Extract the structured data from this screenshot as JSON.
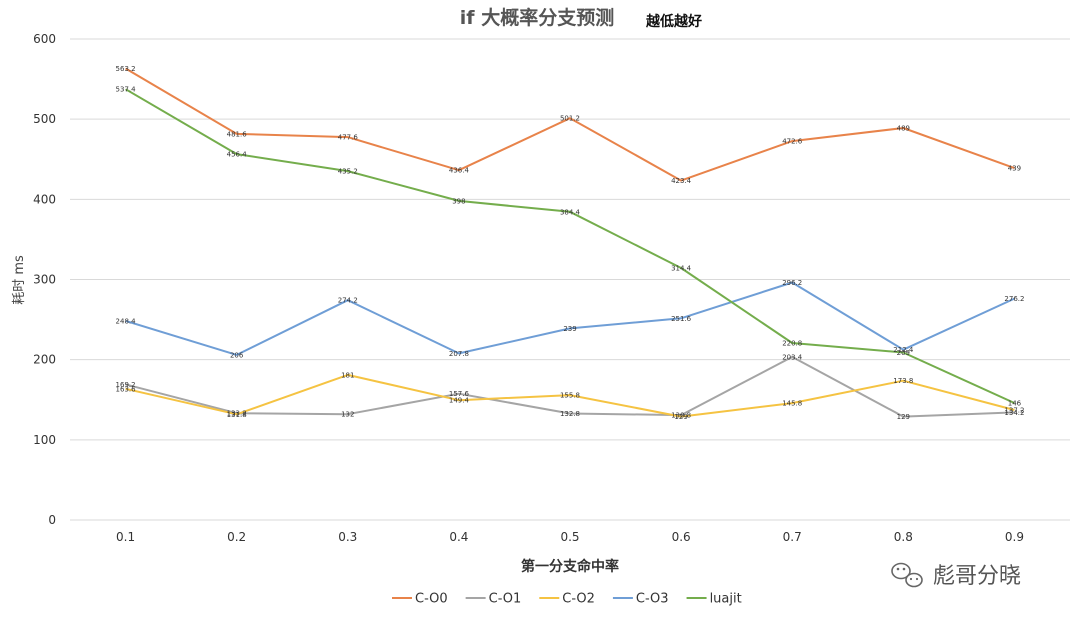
{
  "chart_data": {
    "type": "line",
    "title": "if 大概率分支预测",
    "subtitle": "越低越好",
    "xlabel": "第一分支命中率",
    "ylabel": "耗时 ms",
    "categories": [
      "0.1",
      "0.2",
      "0.3",
      "0.4",
      "0.5",
      "0.6",
      "0.7",
      "0.8",
      "0.9"
    ],
    "ylim": [
      0,
      600
    ],
    "yticks": [
      0,
      100,
      200,
      300,
      400,
      500,
      600
    ],
    "grid": true,
    "legend_position": "bottom",
    "series": [
      {
        "name": "C-O0",
        "color": "#e8834a",
        "values": [
          563.2,
          481.6,
          477.6,
          436.4,
          501.2,
          423.4,
          472.6,
          489,
          439
        ]
      },
      {
        "name": "C-O1",
        "color": "#a5a5a5",
        "values": [
          169.2,
          133.2,
          132,
          157.6,
          132.8,
          130.8,
          203.4,
          129,
          134.2
        ]
      },
      {
        "name": "C-O2",
        "color": "#f5c342",
        "values": [
          163.6,
          131.8,
          181,
          149.4,
          155.8,
          129,
          145.8,
          173.8,
          137.2
        ]
      },
      {
        "name": "C-O3",
        "color": "#6f9ed6",
        "values": [
          248.4,
          206,
          274.2,
          207.8,
          239,
          251.6,
          296.2,
          212.4,
          276.2
        ]
      },
      {
        "name": "luajit",
        "color": "#74ad4c",
        "values": [
          537.4,
          456.4,
          435.2,
          398,
          384.4,
          314.4,
          220.8,
          209,
          146
        ]
      }
    ]
  },
  "watermark": {
    "text": "彪哥分晓",
    "icon": "wechat-icon"
  }
}
